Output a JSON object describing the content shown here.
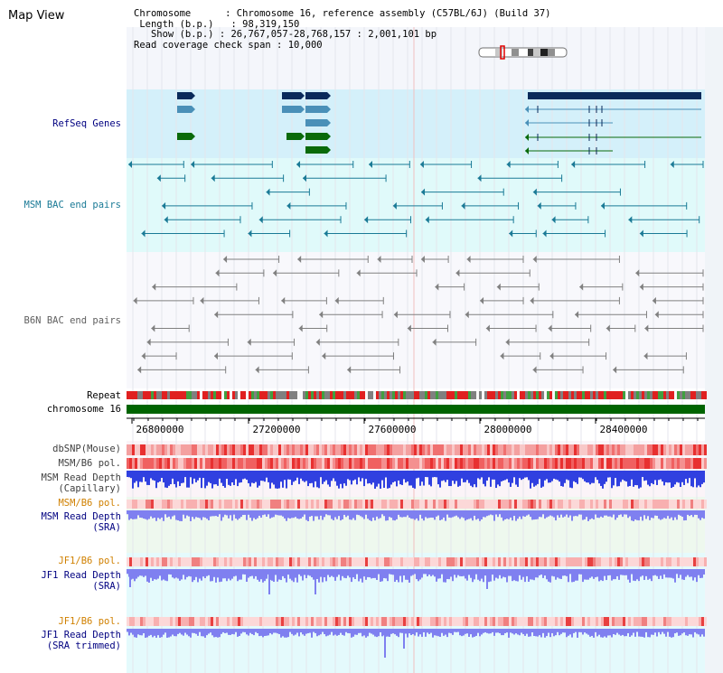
{
  "title": "Map View",
  "info": {
    "chromosome_label": "Chromosome",
    "chromosome_value": "Chromosome 16, reference assembly (C57BL/6J) (Build 37)",
    "length_label": "Length (b.p.)",
    "length_value": "98,319,150",
    "show_label": "Show (b.p.)",
    "show_value": "26,767,057-28,768,157 : 2,001,101 bp",
    "span_label": "Read coverage check span",
    "span_value": "10,000"
  },
  "tracks": {
    "refseq": "RefSeq Genes",
    "msm_bac": "MSM BAC end pairs",
    "b6n_bac": "B6N BAC end pairs",
    "repeat": "Repeat",
    "chromosome": "chromosome 16",
    "dbsnp": "dbSNP(Mouse)",
    "msm_b6_pol": "MSM/B6 pol.",
    "msm_depth_cap_1": "MSM Read Depth",
    "msm_depth_cap_2": "(Capillary)",
    "msm_b6_pol2": "MSM/B6 pol.",
    "msm_depth_sra_1": "MSM Read Depth",
    "msm_depth_sra_2": "(SRA)",
    "jf1_b6_pol": "JF1/B6 pol.",
    "jf1_depth_sra_1": "JF1 Read Depth",
    "jf1_depth_sra_2": "(SRA)",
    "jf1_b6_pol2": "JF1/B6 pol.",
    "jf1_depth_trim_1": "JF1 Read Depth",
    "jf1_depth_trim_2": "(SRA trimmed)"
  },
  "axis": {
    "ticks": [
      "26800000",
      "27200000",
      "27600000",
      "28000000",
      "28400000"
    ]
  },
  "colors": {
    "label_navy": "#000080",
    "label_orange": "#d08000",
    "refseq_bg": "#d4f0fa",
    "msm_bg": "#e0fafa",
    "msm_feature": "#1a7a96",
    "b6n_feature": "#808080",
    "gene_navy": "#0a2a5a",
    "gene_steel": "#4a90b8",
    "gene_green": "#0a6a0a",
    "chrom_green": "#006400",
    "depth_blue": "#3040e0",
    "depth_lav": "#7f80f0"
  }
}
